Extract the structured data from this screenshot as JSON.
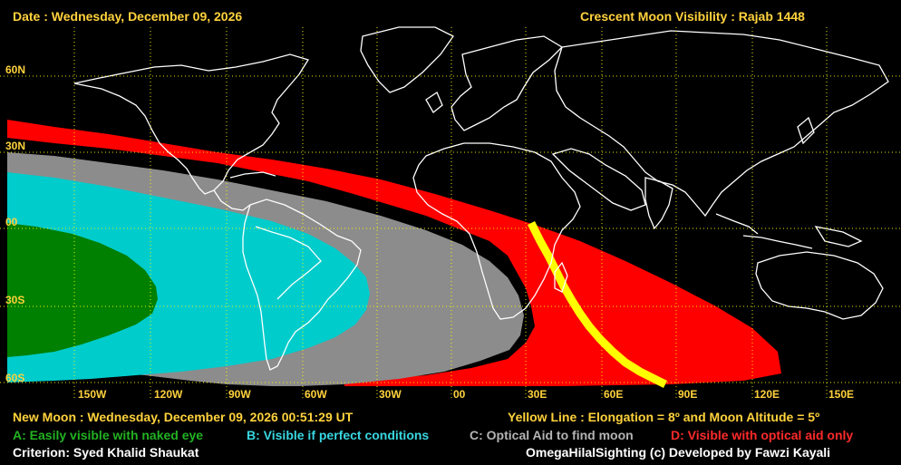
{
  "header": {
    "date": "Date : Wednesday, December 09, 2026",
    "title": "Crescent Moon Visibility : Rajab  1448"
  },
  "lat_labels": [
    "60N",
    "30N",
    "00",
    "30S",
    "60S"
  ],
  "lon_labels": [
    "150W",
    "120W",
    "90W",
    "60W",
    "30W",
    "00",
    "30E",
    "60E",
    "90E",
    "120E",
    "150E"
  ],
  "footer": {
    "new_moon": "New Moon : Wednesday, December 09, 2026  00:51:29  UT",
    "yellow_line": "Yellow Line : Elongation = 8º  and Moon Altitude = 5º",
    "legend_a": "A: Easily visible with naked eye",
    "legend_b": "B: Visible if perfect conditions",
    "legend_c": "C: Optical Aid to find moon",
    "legend_d": "D: Visible with optical aid only",
    "criterion": "Criterion: Syed Khalid Shaukat",
    "credit": "OmegaHilalSighting  (c)  Developed by Fawzi Kayali"
  },
  "colors": {
    "zone_a": "#008000",
    "zone_b": "#00CCCC",
    "zone_c": "#8C8C8C",
    "zone_d": "#FF0000",
    "yellow_line": "#FFFF00",
    "grid": "#FFFF00",
    "coast": "#FFFFFF"
  }
}
